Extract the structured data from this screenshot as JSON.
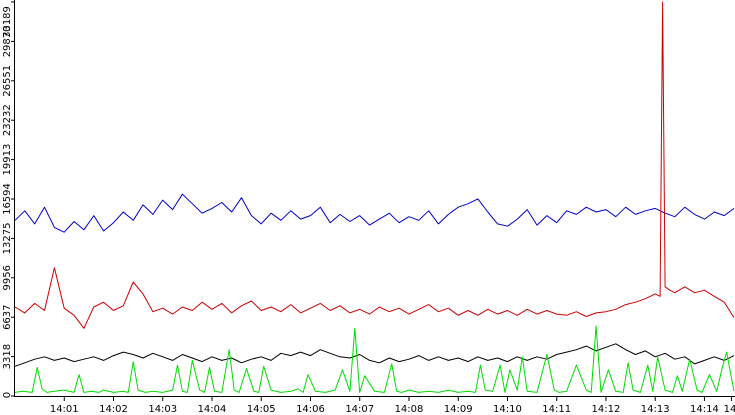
{
  "chart_data": {
    "type": "line",
    "title": "",
    "xlabel": "",
    "ylabel": "",
    "grid": false,
    "legend": "none",
    "x_range_minutes": [
      0,
      14.62
    ],
    "ylim": [
      0,
      33189
    ],
    "x_ticks": [
      {
        "label": "14:01",
        "minute": 1.0
      },
      {
        "label": "14:02",
        "minute": 2.0
      },
      {
        "label": "14:03",
        "minute": 3.0
      },
      {
        "label": "14:04",
        "minute": 4.0
      },
      {
        "label": "14:05",
        "minute": 5.0
      },
      {
        "label": "14:06",
        "minute": 6.0
      },
      {
        "label": "14:07",
        "minute": 7.0
      },
      {
        "label": "14:08",
        "minute": 8.0
      },
      {
        "label": "14:09",
        "minute": 9.0
      },
      {
        "label": "14:10",
        "minute": 10.0
      },
      {
        "label": "14:11",
        "minute": 11.0
      },
      {
        "label": "14:12",
        "minute": 12.0
      },
      {
        "label": "14:13",
        "minute": 13.0
      },
      {
        "label": "14:14",
        "minute": 14.0
      },
      {
        "label": "14",
        "minute": 14.55
      }
    ],
    "y_ticks": [
      {
        "label": "0",
        "value": 0
      },
      {
        "label": "3318",
        "value": 3318
      },
      {
        "label": "6637",
        "value": 6637
      },
      {
        "label": "9956",
        "value": 9956
      },
      {
        "label": "13275",
        "value": 13275
      },
      {
        "label": "16594",
        "value": 16594
      },
      {
        "label": "19913",
        "value": 19913
      },
      {
        "label": "23232",
        "value": 23232
      },
      {
        "label": "26551",
        "value": 26551
      },
      {
        "label": "29870",
        "value": 29870
      },
      {
        "label": "33189",
        "value": 33189
      }
    ],
    "series": [
      {
        "color": "#0000cc",
        "x": [
          0,
          0.2,
          0.4,
          0.6,
          0.8,
          1.0,
          1.2,
          1.4,
          1.6,
          1.8,
          2.0,
          2.2,
          2.4,
          2.6,
          2.8,
          3.0,
          3.2,
          3.4,
          3.6,
          3.8,
          4.0,
          4.2,
          4.4,
          4.6,
          4.8,
          5.0,
          5.2,
          5.4,
          5.6,
          5.8,
          6.0,
          6.2,
          6.4,
          6.6,
          6.8,
          7.0,
          7.2,
          7.4,
          7.6,
          7.8,
          8.0,
          8.2,
          8.4,
          8.6,
          8.8,
          9.0,
          9.2,
          9.4,
          9.6,
          9.8,
          10.0,
          10.2,
          10.4,
          10.6,
          10.8,
          11.0,
          11.2,
          11.4,
          11.6,
          11.8,
          12.0,
          12.2,
          12.4,
          12.6,
          12.8,
          13.0,
          13.2,
          13.4,
          13.6,
          13.8,
          14.0,
          14.2,
          14.4,
          14.6
        ],
        "y": [
          14800,
          15600,
          14500,
          15900,
          14200,
          13800,
          14700,
          14000,
          15200,
          13900,
          14600,
          15500,
          14800,
          16100,
          15300,
          16500,
          15700,
          17000,
          16200,
          15400,
          15800,
          16300,
          15500,
          16700,
          15200,
          14500,
          15400,
          14800,
          15600,
          14900,
          15200,
          15900,
          14600,
          15300,
          14700,
          15200,
          14400,
          14900,
          15400,
          14600,
          15100,
          14800,
          15600,
          14500,
          15300,
          15900,
          16200,
          16600,
          15500,
          14500,
          14300,
          14900,
          15700,
          14400,
          15200,
          14600,
          15600,
          15300,
          15900,
          15500,
          15700,
          15100,
          15900,
          15300,
          15600,
          15800,
          15400,
          15100,
          15900,
          15300,
          14900,
          15500,
          15200,
          15800
        ]
      },
      {
        "color": "#cc0000",
        "x": [
          0,
          0.2,
          0.4,
          0.6,
          0.8,
          1.0,
          1.2,
          1.4,
          1.6,
          1.8,
          2.0,
          2.2,
          2.4,
          2.6,
          2.8,
          3.0,
          3.2,
          3.4,
          3.6,
          3.8,
          4.0,
          4.2,
          4.4,
          4.6,
          4.8,
          5.0,
          5.2,
          5.4,
          5.6,
          5.8,
          6.0,
          6.2,
          6.4,
          6.6,
          6.8,
          7.0,
          7.2,
          7.4,
          7.6,
          7.8,
          8.0,
          8.2,
          8.4,
          8.6,
          8.8,
          9.0,
          9.2,
          9.4,
          9.6,
          9.8,
          10.0,
          10.2,
          10.4,
          10.6,
          10.8,
          11.0,
          11.2,
          11.4,
          11.6,
          11.8,
          12.0,
          12.2,
          12.4,
          12.6,
          12.8,
          13.0,
          13.1,
          13.15,
          13.2,
          13.3,
          13.4,
          13.6,
          13.8,
          14.0,
          14.2,
          14.4,
          14.6
        ],
        "y": [
          7500,
          7000,
          7800,
          7200,
          10800,
          7400,
          6800,
          5700,
          7500,
          7900,
          7200,
          7600,
          9600,
          8600,
          7100,
          7400,
          6900,
          7500,
          7200,
          7900,
          7300,
          7800,
          7000,
          7600,
          8000,
          7200,
          7500,
          7100,
          7700,
          7000,
          7400,
          7800,
          7200,
          7600,
          7000,
          7300,
          6900,
          7500,
          7100,
          7400,
          6900,
          7300,
          7700,
          7100,
          7400,
          6800,
          7200,
          6800,
          7300,
          6900,
          7200,
          6800,
          7300,
          6900,
          7200,
          6900,
          6800,
          7100,
          6700,
          7000,
          7100,
          7300,
          7700,
          7900,
          8200,
          8600,
          8400,
          33189,
          9200,
          8900,
          8700,
          9200,
          8700,
          8900,
          8400,
          7900,
          6600
        ]
      },
      {
        "color": "#000000",
        "x": [
          0,
          0.2,
          0.4,
          0.6,
          0.8,
          1.0,
          1.2,
          1.4,
          1.6,
          1.8,
          2.0,
          2.2,
          2.4,
          2.6,
          2.8,
          3.0,
          3.2,
          3.4,
          3.6,
          3.8,
          4.0,
          4.2,
          4.4,
          4.6,
          4.8,
          5.0,
          5.2,
          5.4,
          5.6,
          5.8,
          6.0,
          6.2,
          6.4,
          6.6,
          6.8,
          7.0,
          7.2,
          7.4,
          7.6,
          7.8,
          8.0,
          8.2,
          8.4,
          8.6,
          8.8,
          9.0,
          9.2,
          9.4,
          9.6,
          9.8,
          10.0,
          10.2,
          10.4,
          10.6,
          10.8,
          11.0,
          11.2,
          11.4,
          11.6,
          11.8,
          12.0,
          12.2,
          12.4,
          12.6,
          12.8,
          13.0,
          13.2,
          13.4,
          13.6,
          13.8,
          14.0,
          14.2,
          14.4,
          14.6
        ],
        "y": [
          2500,
          2800,
          3100,
          3300,
          3000,
          3200,
          2900,
          3100,
          3300,
          3000,
          3400,
          3700,
          3500,
          3200,
          3600,
          3300,
          3000,
          3500,
          3200,
          2900,
          3300,
          3000,
          3200,
          2800,
          3100,
          3300,
          3000,
          3600,
          3400,
          3700,
          3400,
          3900,
          3600,
          3300,
          3200,
          3500,
          3000,
          2800,
          3200,
          2900,
          3100,
          3400,
          3000,
          3300,
          3000,
          3200,
          2900,
          3300,
          3000,
          3200,
          2900,
          3300,
          3000,
          3300,
          3100,
          3500,
          3700,
          3900,
          4200,
          3800,
          4100,
          4400,
          3900,
          3500,
          3800,
          3300,
          3600,
          3100,
          3300,
          2700,
          3000,
          3300,
          3000,
          3400
        ]
      },
      {
        "color": "#00dd00",
        "x": [
          0,
          0.15,
          0.35,
          0.45,
          0.55,
          0.65,
          0.8,
          1.0,
          1.2,
          1.3,
          1.4,
          1.55,
          1.7,
          1.8,
          2.0,
          2.2,
          2.3,
          2.4,
          2.5,
          2.65,
          2.8,
          3.0,
          3.2,
          3.3,
          3.4,
          3.5,
          3.6,
          3.75,
          3.85,
          3.95,
          4.05,
          4.2,
          4.35,
          4.45,
          4.55,
          4.7,
          4.85,
          4.95,
          5.05,
          5.2,
          5.4,
          5.6,
          5.75,
          5.85,
          5.95,
          6.1,
          6.3,
          6.5,
          6.65,
          6.8,
          6.9,
          7.0,
          7.1,
          7.3,
          7.5,
          7.65,
          7.75,
          7.85,
          8.0,
          8.2,
          8.4,
          8.6,
          8.8,
          9.0,
          9.2,
          9.35,
          9.45,
          9.55,
          9.7,
          9.85,
          9.95,
          10.05,
          10.2,
          10.3,
          10.4,
          10.6,
          10.8,
          10.95,
          11.05,
          11.2,
          11.4,
          11.6,
          11.7,
          11.8,
          11.9,
          12.05,
          12.2,
          12.35,
          12.45,
          12.55,
          12.7,
          12.85,
          12.95,
          13.05,
          13.2,
          13.35,
          13.45,
          13.55,
          13.7,
          13.85,
          13.95,
          14.1,
          14.25,
          14.35,
          14.45,
          14.6
        ],
        "y": [
          300,
          400,
          300,
          2400,
          600,
          300,
          400,
          500,
          300,
          1800,
          300,
          400,
          300,
          500,
          300,
          400,
          300,
          2900,
          500,
          300,
          400,
          300,
          500,
          2600,
          400,
          300,
          3000,
          500,
          300,
          2400,
          400,
          300,
          3900,
          500,
          300,
          2300,
          400,
          300,
          2500,
          500,
          300,
          400,
          600,
          300,
          1800,
          400,
          300,
          500,
          2200,
          400,
          5700,
          300,
          1700,
          400,
          300,
          2700,
          400,
          300,
          500,
          300,
          400,
          300,
          500,
          300,
          400,
          300,
          2600,
          500,
          400,
          2600,
          300,
          2200,
          500,
          3300,
          400,
          300,
          3500,
          500,
          300,
          400,
          2600,
          500,
          300,
          5900,
          300,
          2200,
          400,
          300,
          2800,
          500,
          300,
          2600,
          400,
          3300,
          500,
          300,
          1700,
          400,
          3100,
          500,
          300,
          1800,
          400,
          2200,
          3700,
          400
        ]
      }
    ]
  }
}
